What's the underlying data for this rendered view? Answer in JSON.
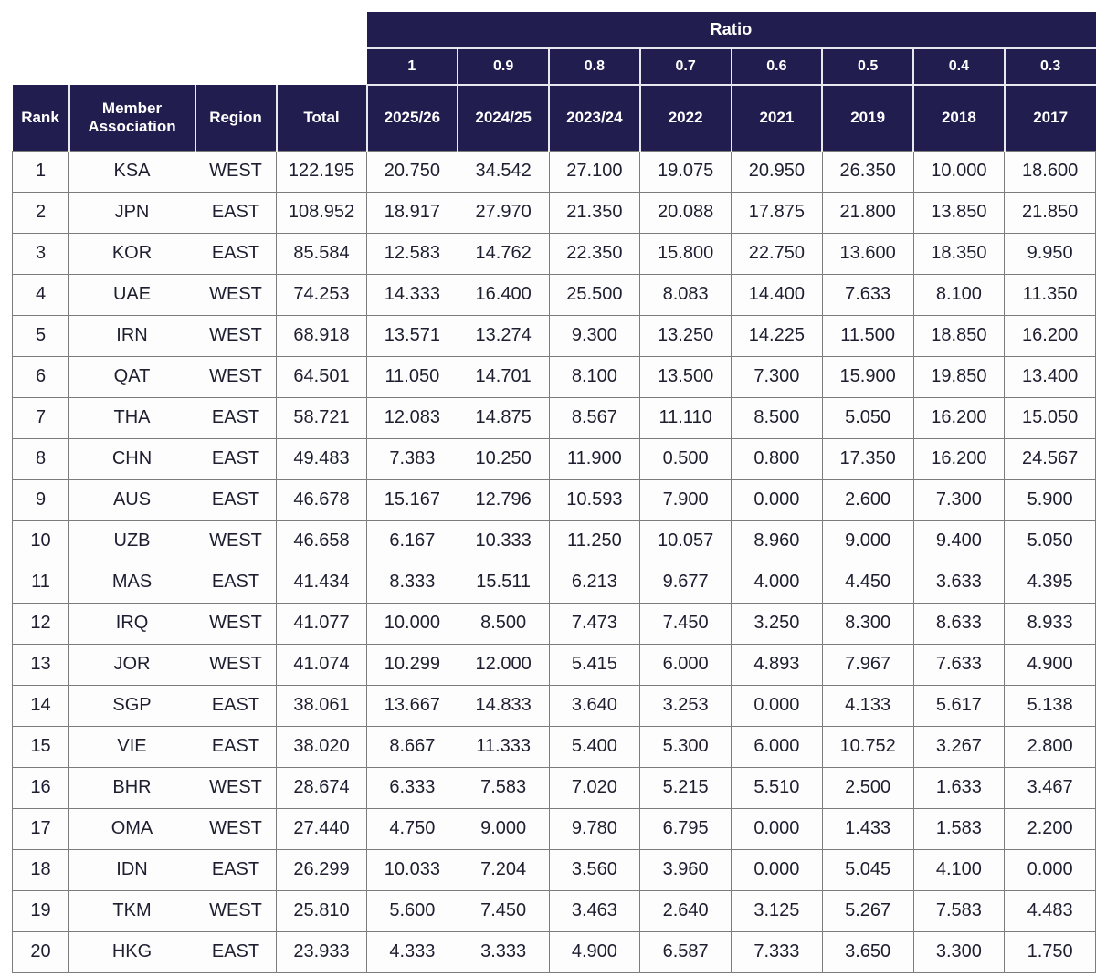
{
  "table": {
    "ratio_header": "Ratio",
    "ratio_values": [
      "1",
      "0.9",
      "0.8",
      "0.7",
      "0.6",
      "0.5",
      "0.4",
      "0.3"
    ],
    "columns": [
      "Rank",
      "Member Association",
      "Region",
      "Total",
      "2025/26",
      "2024/25",
      "2023/24",
      "2022",
      "2021",
      "2019",
      "2018",
      "2017"
    ],
    "rows": [
      [
        "1",
        "KSA",
        "WEST",
        "122.195",
        "20.750",
        "34.542",
        "27.100",
        "19.075",
        "20.950",
        "26.350",
        "10.000",
        "18.600"
      ],
      [
        "2",
        "JPN",
        "EAST",
        "108.952",
        "18.917",
        "27.970",
        "21.350",
        "20.088",
        "17.875",
        "21.800",
        "13.850",
        "21.850"
      ],
      [
        "3",
        "KOR",
        "EAST",
        "85.584",
        "12.583",
        "14.762",
        "22.350",
        "15.800",
        "22.750",
        "13.600",
        "18.350",
        "9.950"
      ],
      [
        "4",
        "UAE",
        "WEST",
        "74.253",
        "14.333",
        "16.400",
        "25.500",
        "8.083",
        "14.400",
        "7.633",
        "8.100",
        "11.350"
      ],
      [
        "5",
        "IRN",
        "WEST",
        "68.918",
        "13.571",
        "13.274",
        "9.300",
        "13.250",
        "14.225",
        "11.500",
        "18.850",
        "16.200"
      ],
      [
        "6",
        "QAT",
        "WEST",
        "64.501",
        "11.050",
        "14.701",
        "8.100",
        "13.500",
        "7.300",
        "15.900",
        "19.850",
        "13.400"
      ],
      [
        "7",
        "THA",
        "EAST",
        "58.721",
        "12.083",
        "14.875",
        "8.567",
        "11.110",
        "8.500",
        "5.050",
        "16.200",
        "15.050"
      ],
      [
        "8",
        "CHN",
        "EAST",
        "49.483",
        "7.383",
        "10.250",
        "11.900",
        "0.500",
        "0.800",
        "17.350",
        "16.200",
        "24.567"
      ],
      [
        "9",
        "AUS",
        "EAST",
        "46.678",
        "15.167",
        "12.796",
        "10.593",
        "7.900",
        "0.000",
        "2.600",
        "7.300",
        "5.900"
      ],
      [
        "10",
        "UZB",
        "WEST",
        "46.658",
        "6.167",
        "10.333",
        "11.250",
        "10.057",
        "8.960",
        "9.000",
        "9.400",
        "5.050"
      ],
      [
        "11",
        "MAS",
        "EAST",
        "41.434",
        "8.333",
        "15.511",
        "6.213",
        "9.677",
        "4.000",
        "4.450",
        "3.633",
        "4.395"
      ],
      [
        "12",
        "IRQ",
        "WEST",
        "41.077",
        "10.000",
        "8.500",
        "7.473",
        "7.450",
        "3.250",
        "8.300",
        "8.633",
        "8.933"
      ],
      [
        "13",
        "JOR",
        "WEST",
        "41.074",
        "10.299",
        "12.000",
        "5.415",
        "6.000",
        "4.893",
        "7.967",
        "7.633",
        "4.900"
      ],
      [
        "14",
        "SGP",
        "EAST",
        "38.061",
        "13.667",
        "14.833",
        "3.640",
        "3.253",
        "0.000",
        "4.133",
        "5.617",
        "5.138"
      ],
      [
        "15",
        "VIE",
        "EAST",
        "38.020",
        "8.667",
        "11.333",
        "5.400",
        "5.300",
        "6.000",
        "10.752",
        "3.267",
        "2.800"
      ],
      [
        "16",
        "BHR",
        "WEST",
        "28.674",
        "6.333",
        "7.583",
        "7.020",
        "5.215",
        "5.510",
        "2.500",
        "1.633",
        "3.467"
      ],
      [
        "17",
        "OMA",
        "WEST",
        "27.440",
        "4.750",
        "9.000",
        "9.780",
        "6.795",
        "0.000",
        "1.433",
        "1.583",
        "2.200"
      ],
      [
        "18",
        "IDN",
        "EAST",
        "26.299",
        "10.033",
        "7.204",
        "3.560",
        "3.960",
        "0.000",
        "5.045",
        "4.100",
        "0.000"
      ],
      [
        "19",
        "TKM",
        "WEST",
        "25.810",
        "5.600",
        "7.450",
        "3.463",
        "2.640",
        "3.125",
        "5.267",
        "7.583",
        "4.483"
      ],
      [
        "20",
        "HKG",
        "EAST",
        "23.933",
        "4.333",
        "3.333",
        "4.900",
        "6.587",
        "7.333",
        "3.650",
        "3.300",
        "1.750"
      ]
    ],
    "colors": {
      "header_bg": "#211d4e",
      "header_text": "#ffffff",
      "body_text": "#1e1e30",
      "grid_border": "#7c7c7c",
      "header_divider": "#e9e7f0",
      "page_bg": "#ffffff"
    }
  }
}
